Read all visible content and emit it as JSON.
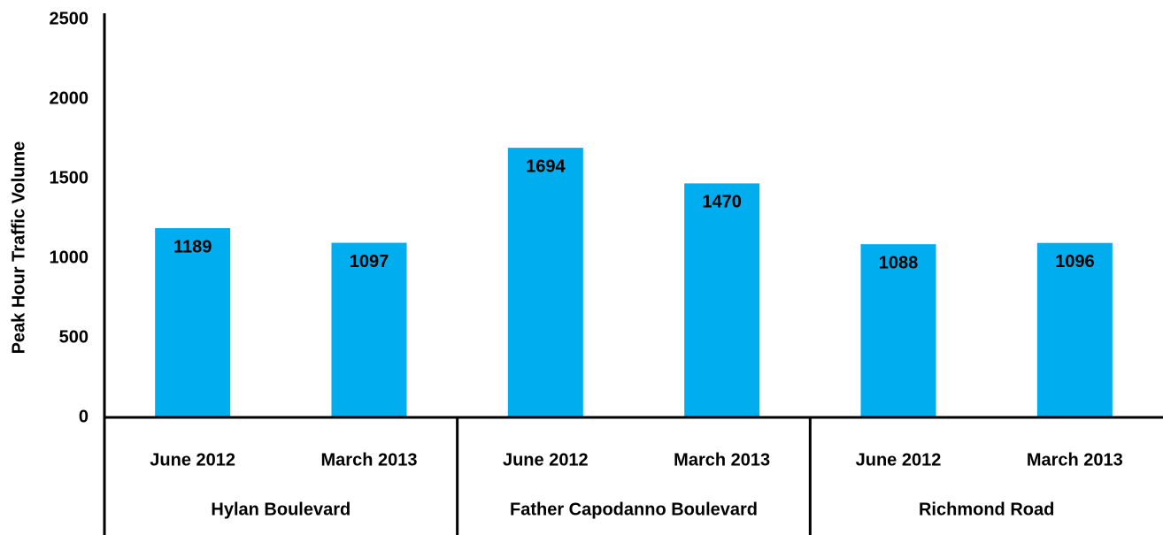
{
  "chart_data": {
    "type": "bar",
    "y_label": "Peak Hour Traffic Volume",
    "color": "#00aeef",
    "ylim": [
      0,
      2500
    ],
    "yticks": [
      0,
      500,
      1000,
      1500,
      2000,
      2500
    ],
    "grid": false,
    "groups": [
      {
        "name": "Hylan Boulevard",
        "categories": [
          "June 2012",
          "March 2013"
        ],
        "values": [
          1189,
          1097
        ]
      },
      {
        "name": "Father Capodanno Boulevard",
        "categories": [
          "June 2012",
          "March 2013"
        ],
        "values": [
          1694,
          1470
        ]
      },
      {
        "name": "Richmond Road",
        "categories": [
          "June 2012",
          "March 2013"
        ],
        "values": [
          1088,
          1096
        ]
      }
    ]
  }
}
